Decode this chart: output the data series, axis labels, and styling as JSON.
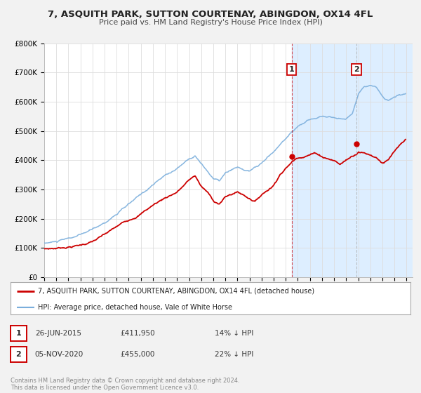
{
  "title": "7, ASQUITH PARK, SUTTON COURTENAY, ABINGDON, OX14 4FL",
  "subtitle": "Price paid vs. HM Land Registry's House Price Index (HPI)",
  "ylim": [
    0,
    800000
  ],
  "yticks": [
    0,
    100000,
    200000,
    300000,
    400000,
    500000,
    600000,
    700000,
    800000
  ],
  "ytick_labels": [
    "£0",
    "£100K",
    "£200K",
    "£300K",
    "£400K",
    "£500K",
    "£600K",
    "£700K",
    "£800K"
  ],
  "xlim_start": 1995.0,
  "xlim_end": 2025.5,
  "legend_line1": "7, ASQUITH PARK, SUTTON COURTENAY, ABINGDON, OX14 4FL (detached house)",
  "legend_line2": "HPI: Average price, detached house, Vale of White Horse",
  "red_color": "#cc0000",
  "blue_color": "#7aaedc",
  "annotation1_date": "26-JUN-2015",
  "annotation1_price": "£411,950",
  "annotation1_pct": "14% ↓ HPI",
  "annotation2_date": "05-NOV-2020",
  "annotation2_price": "£455,000",
  "annotation2_pct": "22% ↓ HPI",
  "vline1_x": 2015.49,
  "vline2_x": 2020.85,
  "dot1_x": 2015.49,
  "dot1_y": 411950,
  "dot2_x": 2020.85,
  "dot2_y": 455000,
  "footer": "Contains HM Land Registry data © Crown copyright and database right 2024.\nThis data is licensed under the Open Government Licence v3.0.",
  "background_color": "#f2f2f2",
  "plot_bg_color": "#ffffff",
  "shade_color": "#ddeeff"
}
